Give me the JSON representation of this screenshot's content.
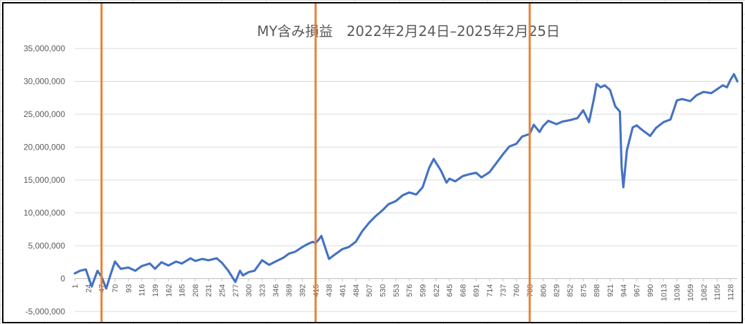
{
  "chart_data": {
    "type": "line",
    "title": "MY含み損益　2022年2月24日–2025年2月25日",
    "xlabel": "",
    "ylabel": "",
    "ylim": [
      -5000000,
      35000000
    ],
    "yticks": [
      -5000000,
      0,
      5000000,
      10000000,
      15000000,
      20000000,
      25000000,
      30000000,
      35000000
    ],
    "ytick_labels": [
      "-5,000,000",
      "0",
      "5,000,000",
      "10,000,000",
      "15,000,000",
      "20,000,000",
      "25,000,000",
      "30,000,000",
      "35,000,000"
    ],
    "xlim": [
      1,
      1140
    ],
    "xticks": [
      1,
      24,
      47,
      70,
      93,
      116,
      139,
      162,
      185,
      208,
      231,
      254,
      277,
      300,
      323,
      346,
      369,
      392,
      415,
      438,
      461,
      484,
      507,
      530,
      553,
      576,
      599,
      622,
      645,
      668,
      691,
      714,
      737,
      760,
      783,
      806,
      829,
      852,
      875,
      898,
      921,
      944,
      967,
      990,
      1013,
      1036,
      1059,
      1082,
      1105,
      1128
    ],
    "grid": true,
    "legend": "none",
    "series_color": "#4472c4",
    "marker_line_color": "#ed7d31",
    "vertical_markers": [
      47,
      415,
      783
    ],
    "x": [
      1,
      10,
      20,
      30,
      40,
      47,
      55,
      62,
      70,
      80,
      93,
      105,
      116,
      130,
      139,
      150,
      162,
      175,
      185,
      200,
      208,
      220,
      231,
      245,
      254,
      265,
      277,
      285,
      290,
      300,
      310,
      323,
      335,
      346,
      360,
      369,
      380,
      392,
      400,
      410,
      415,
      420,
      425,
      430,
      438,
      450,
      461,
      472,
      484,
      495,
      507,
      518,
      530,
      540,
      553,
      565,
      576,
      588,
      599,
      610,
      618,
      622,
      630,
      640,
      645,
      655,
      668,
      680,
      691,
      700,
      714,
      725,
      737,
      748,
      760,
      770,
      783,
      790,
      800,
      806,
      815,
      829,
      840,
      852,
      865,
      875,
      885,
      893,
      898,
      905,
      912,
      921,
      930,
      938,
      941,
      944,
      950,
      960,
      967,
      975,
      990,
      1000,
      1013,
      1025,
      1036,
      1045,
      1059,
      1070,
      1082,
      1095,
      1105,
      1115,
      1122,
      1128,
      1134,
      1140
    ],
    "values": [
      800000,
      1200000,
      1400000,
      -1200000,
      1200000,
      300000,
      -1500000,
      500000,
      2600000,
      1500000,
      1700000,
      1200000,
      1900000,
      2300000,
      1500000,
      2500000,
      2000000,
      2600000,
      2300000,
      3100000,
      2700000,
      3000000,
      2800000,
      3100000,
      2400000,
      1200000,
      -500000,
      1200000,
      500000,
      1000000,
      1200000,
      2800000,
      2100000,
      2600000,
      3200000,
      3800000,
      4100000,
      4800000,
      5200000,
      5600000,
      5400000,
      5900000,
      6500000,
      5100000,
      3000000,
      3800000,
      4500000,
      4800000,
      5600000,
      7200000,
      8500000,
      9500000,
      10400000,
      11300000,
      11800000,
      12700000,
      13100000,
      12800000,
      13900000,
      16800000,
      18200000,
      17600000,
      16500000,
      14600000,
      15200000,
      14800000,
      15600000,
      15900000,
      16100000,
      15400000,
      16200000,
      17500000,
      18900000,
      20100000,
      20500000,
      21600000,
      22000000,
      23400000,
      22300000,
      23200000,
      24000000,
      23500000,
      23900000,
      24100000,
      24400000,
      25600000,
      23800000,
      27200000,
      29600000,
      29100000,
      29400000,
      28700000,
      26200000,
      25400000,
      17000000,
      13900000,
      19500000,
      23000000,
      23300000,
      22700000,
      21700000,
      22900000,
      23800000,
      24200000,
      27100000,
      27300000,
      27000000,
      27900000,
      28400000,
      28200000,
      28800000,
      29400000,
      29100000,
      30200000,
      31100000,
      30000000
    ]
  }
}
